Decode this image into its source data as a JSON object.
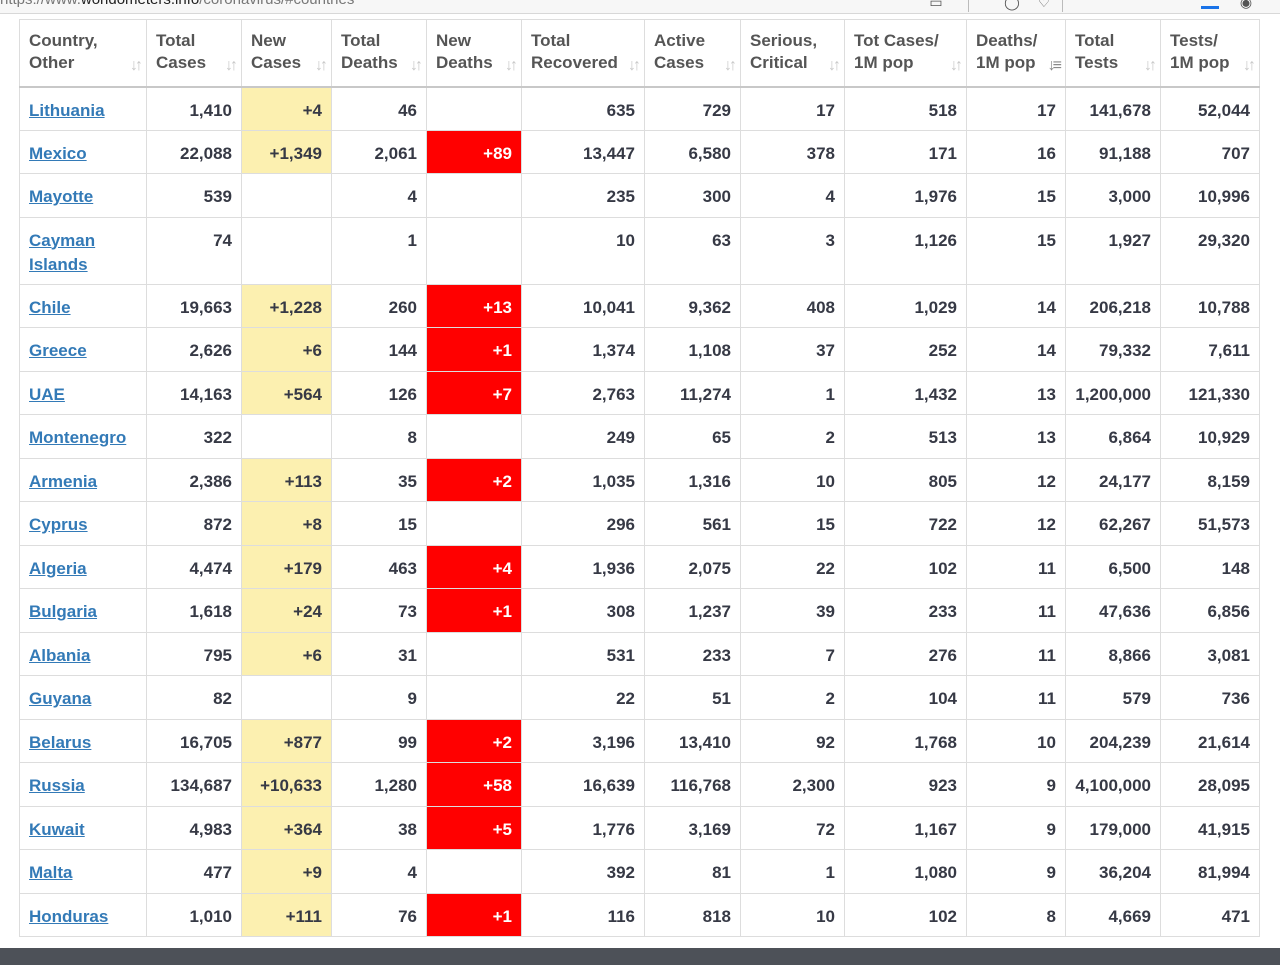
{
  "browser": {
    "url_prefix": "https://www.",
    "url_domain": "worldometers.info",
    "url_suffix": "/coronavirus/#countries"
  },
  "colors": {
    "new_cases_highlight": "#fcf0b0",
    "new_deaths_highlight": "#ff0000",
    "country_link": "#337ab7"
  },
  "table": {
    "headers": [
      {
        "line1": "Country,",
        "line2": "Other"
      },
      {
        "line1": "Total",
        "line2": "Cases"
      },
      {
        "line1": "New",
        "line2": "Cases"
      },
      {
        "line1": "Total",
        "line2": "Deaths"
      },
      {
        "line1": "New",
        "line2": "Deaths"
      },
      {
        "line1": "Total",
        "line2": "Recovered"
      },
      {
        "line1": "Active",
        "line2": "Cases"
      },
      {
        "line1": "Serious,",
        "line2": "Critical"
      },
      {
        "line1": "Tot Cases/",
        "line2": "1M pop"
      },
      {
        "line1": "Deaths/",
        "line2": "1M pop"
      },
      {
        "line1": "Total",
        "line2": "Tests"
      },
      {
        "line1": "Tests/",
        "line2": "1M pop"
      }
    ],
    "sorted_column": "Deaths/ 1M pop",
    "rows": [
      {
        "country": "Lithuania",
        "total_cases": "1,410",
        "new_cases": "+4",
        "total_deaths": "46",
        "new_deaths": "",
        "total_recovered": "635",
        "active_cases": "729",
        "serious_critical": "17",
        "cases_per_1m": "518",
        "deaths_per_1m": "17",
        "total_tests": "141,678",
        "tests_per_1m": "52,044"
      },
      {
        "country": "Mexico",
        "total_cases": "22,088",
        "new_cases": "+1,349",
        "total_deaths": "2,061",
        "new_deaths": "+89",
        "total_recovered": "13,447",
        "active_cases": "6,580",
        "serious_critical": "378",
        "cases_per_1m": "171",
        "deaths_per_1m": "16",
        "total_tests": "91,188",
        "tests_per_1m": "707"
      },
      {
        "country": "Mayotte",
        "total_cases": "539",
        "new_cases": "",
        "total_deaths": "4",
        "new_deaths": "",
        "total_recovered": "235",
        "active_cases": "300",
        "serious_critical": "4",
        "cases_per_1m": "1,976",
        "deaths_per_1m": "15",
        "total_tests": "3,000",
        "tests_per_1m": "10,996"
      },
      {
        "country": "Cayman Islands",
        "total_cases": "74",
        "new_cases": "",
        "total_deaths": "1",
        "new_deaths": "",
        "total_recovered": "10",
        "active_cases": "63",
        "serious_critical": "3",
        "cases_per_1m": "1,126",
        "deaths_per_1m": "15",
        "total_tests": "1,927",
        "tests_per_1m": "29,320"
      },
      {
        "country": "Chile",
        "total_cases": "19,663",
        "new_cases": "+1,228",
        "total_deaths": "260",
        "new_deaths": "+13",
        "total_recovered": "10,041",
        "active_cases": "9,362",
        "serious_critical": "408",
        "cases_per_1m": "1,029",
        "deaths_per_1m": "14",
        "total_tests": "206,218",
        "tests_per_1m": "10,788"
      },
      {
        "country": "Greece",
        "total_cases": "2,626",
        "new_cases": "+6",
        "total_deaths": "144",
        "new_deaths": "+1",
        "total_recovered": "1,374",
        "active_cases": "1,108",
        "serious_critical": "37",
        "cases_per_1m": "252",
        "deaths_per_1m": "14",
        "total_tests": "79,332",
        "tests_per_1m": "7,611"
      },
      {
        "country": "UAE",
        "total_cases": "14,163",
        "new_cases": "+564",
        "total_deaths": "126",
        "new_deaths": "+7",
        "total_recovered": "2,763",
        "active_cases": "11,274",
        "serious_critical": "1",
        "cases_per_1m": "1,432",
        "deaths_per_1m": "13",
        "total_tests": "1,200,000",
        "tests_per_1m": "121,330"
      },
      {
        "country": "Montenegro",
        "total_cases": "322",
        "new_cases": "",
        "total_deaths": "8",
        "new_deaths": "",
        "total_recovered": "249",
        "active_cases": "65",
        "serious_critical": "2",
        "cases_per_1m": "513",
        "deaths_per_1m": "13",
        "total_tests": "6,864",
        "tests_per_1m": "10,929"
      },
      {
        "country": "Armenia",
        "total_cases": "2,386",
        "new_cases": "+113",
        "total_deaths": "35",
        "new_deaths": "+2",
        "total_recovered": "1,035",
        "active_cases": "1,316",
        "serious_critical": "10",
        "cases_per_1m": "805",
        "deaths_per_1m": "12",
        "total_tests": "24,177",
        "tests_per_1m": "8,159"
      },
      {
        "country": "Cyprus",
        "total_cases": "872",
        "new_cases": "+8",
        "total_deaths": "15",
        "new_deaths": "",
        "total_recovered": "296",
        "active_cases": "561",
        "serious_critical": "15",
        "cases_per_1m": "722",
        "deaths_per_1m": "12",
        "total_tests": "62,267",
        "tests_per_1m": "51,573"
      },
      {
        "country": "Algeria",
        "total_cases": "4,474",
        "new_cases": "+179",
        "total_deaths": "463",
        "new_deaths": "+4",
        "total_recovered": "1,936",
        "active_cases": "2,075",
        "serious_critical": "22",
        "cases_per_1m": "102",
        "deaths_per_1m": "11",
        "total_tests": "6,500",
        "tests_per_1m": "148"
      },
      {
        "country": "Bulgaria",
        "total_cases": "1,618",
        "new_cases": "+24",
        "total_deaths": "73",
        "new_deaths": "+1",
        "total_recovered": "308",
        "active_cases": "1,237",
        "serious_critical": "39",
        "cases_per_1m": "233",
        "deaths_per_1m": "11",
        "total_tests": "47,636",
        "tests_per_1m": "6,856"
      },
      {
        "country": "Albania",
        "total_cases": "795",
        "new_cases": "+6",
        "total_deaths": "31",
        "new_deaths": "",
        "total_recovered": "531",
        "active_cases": "233",
        "serious_critical": "7",
        "cases_per_1m": "276",
        "deaths_per_1m": "11",
        "total_tests": "8,866",
        "tests_per_1m": "3,081"
      },
      {
        "country": "Guyana",
        "total_cases": "82",
        "new_cases": "",
        "total_deaths": "9",
        "new_deaths": "",
        "total_recovered": "22",
        "active_cases": "51",
        "serious_critical": "2",
        "cases_per_1m": "104",
        "deaths_per_1m": "11",
        "total_tests": "579",
        "tests_per_1m": "736"
      },
      {
        "country": "Belarus",
        "total_cases": "16,705",
        "new_cases": "+877",
        "total_deaths": "99",
        "new_deaths": "+2",
        "total_recovered": "3,196",
        "active_cases": "13,410",
        "serious_critical": "92",
        "cases_per_1m": "1,768",
        "deaths_per_1m": "10",
        "total_tests": "204,239",
        "tests_per_1m": "21,614"
      },
      {
        "country": "Russia",
        "total_cases": "134,687",
        "new_cases": "+10,633",
        "total_deaths": "1,280",
        "new_deaths": "+58",
        "total_recovered": "16,639",
        "active_cases": "116,768",
        "serious_critical": "2,300",
        "cases_per_1m": "923",
        "deaths_per_1m": "9",
        "total_tests": "4,100,000",
        "tests_per_1m": "28,095"
      },
      {
        "country": "Kuwait",
        "total_cases": "4,983",
        "new_cases": "+364",
        "total_deaths": "38",
        "new_deaths": "+5",
        "total_recovered": "1,776",
        "active_cases": "3,169",
        "serious_critical": "72",
        "cases_per_1m": "1,167",
        "deaths_per_1m": "9",
        "total_tests": "179,000",
        "tests_per_1m": "41,915"
      },
      {
        "country": "Malta",
        "total_cases": "477",
        "new_cases": "+9",
        "total_deaths": "4",
        "new_deaths": "",
        "total_recovered": "392",
        "active_cases": "81",
        "serious_critical": "1",
        "cases_per_1m": "1,080",
        "deaths_per_1m": "9",
        "total_tests": "36,204",
        "tests_per_1m": "81,994"
      },
      {
        "country": "Honduras",
        "total_cases": "1,010",
        "new_cases": "+111",
        "total_deaths": "76",
        "new_deaths": "+1",
        "total_recovered": "116",
        "active_cases": "818",
        "serious_critical": "10",
        "cases_per_1m": "102",
        "deaths_per_1m": "8",
        "total_tests": "4,669",
        "tests_per_1m": "471"
      }
    ]
  }
}
